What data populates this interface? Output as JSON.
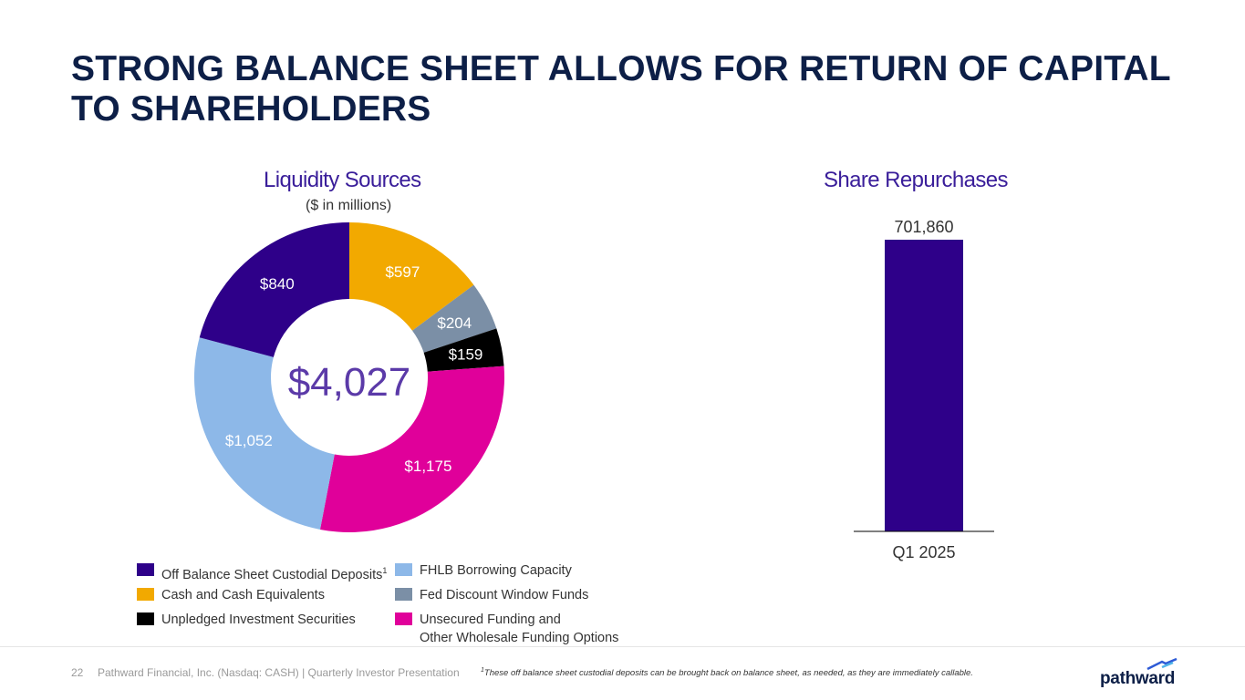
{
  "slide": {
    "title": "STRONG BALANCE SHEET ALLOWS FOR RETURN OF CAPITAL TO SHAREHOLDERS",
    "page_number": "22",
    "footer": "Pathward Financial, Inc. (Nasdaq: CASH) | Quarterly Investor Presentation",
    "footnote_marker": "1",
    "footnote": "These off balance sheet custodial deposits can be brought back on balance sheet, as needed, as they are immediately callable.",
    "logo_text": "pathward"
  },
  "liquidity": {
    "title": "Liquidity Sources",
    "subtitle": "($ in millions)",
    "total_label": "$4,027"
  },
  "repurchases": {
    "title": "Share Repurchases"
  },
  "legend": {
    "items": [
      {
        "label": "Off Balance Sheet Custodial Deposits",
        "sup": "1",
        "color": "#2e0089"
      },
      {
        "label": "FHLB Borrowing Capacity",
        "color": "#8db8e8"
      },
      {
        "label": "Cash and Cash Equivalents",
        "color": "#f2a900"
      },
      {
        "label": "Fed Discount Window Funds",
        "color": "#7b8fa6"
      },
      {
        "label": "Unpledged Investment Securities",
        "color": "#000000"
      },
      {
        "label": "Unsecured Funding and",
        "label2": "Other Wholesale Funding Options",
        "color": "#e0009a"
      }
    ]
  },
  "chart_data": [
    {
      "type": "pie",
      "title": "Liquidity Sources",
      "subtitle": "($ in millions)",
      "center_label": "$4,027",
      "slices": [
        {
          "name": "Cash and Cash Equivalents",
          "value": 597,
          "label": "$597",
          "color": "#f2a900"
        },
        {
          "name": "Fed Discount Window Funds",
          "value": 204,
          "label": "$204",
          "color": "#7b8fa6"
        },
        {
          "name": "Unpledged Investment Securities",
          "value": 159,
          "label": "$159",
          "color": "#000000"
        },
        {
          "name": "Unsecured Funding and Other Wholesale Funding Options",
          "value": 1175,
          "label": "$1,175",
          "color": "#e0009a"
        },
        {
          "name": "FHLB Borrowing Capacity",
          "value": 1052,
          "label": "$1,052",
          "color": "#8db8e8"
        },
        {
          "name": "Off Balance Sheet Custodial Deposits",
          "value": 840,
          "label": "$840",
          "color": "#2e0089"
        }
      ]
    },
    {
      "type": "bar",
      "title": "Share Repurchases",
      "categories": [
        "Q1 2025"
      ],
      "values": [
        701860
      ],
      "labels": [
        "701,860"
      ],
      "ylim": [
        0,
        701860
      ],
      "color": "#2e0089"
    }
  ]
}
